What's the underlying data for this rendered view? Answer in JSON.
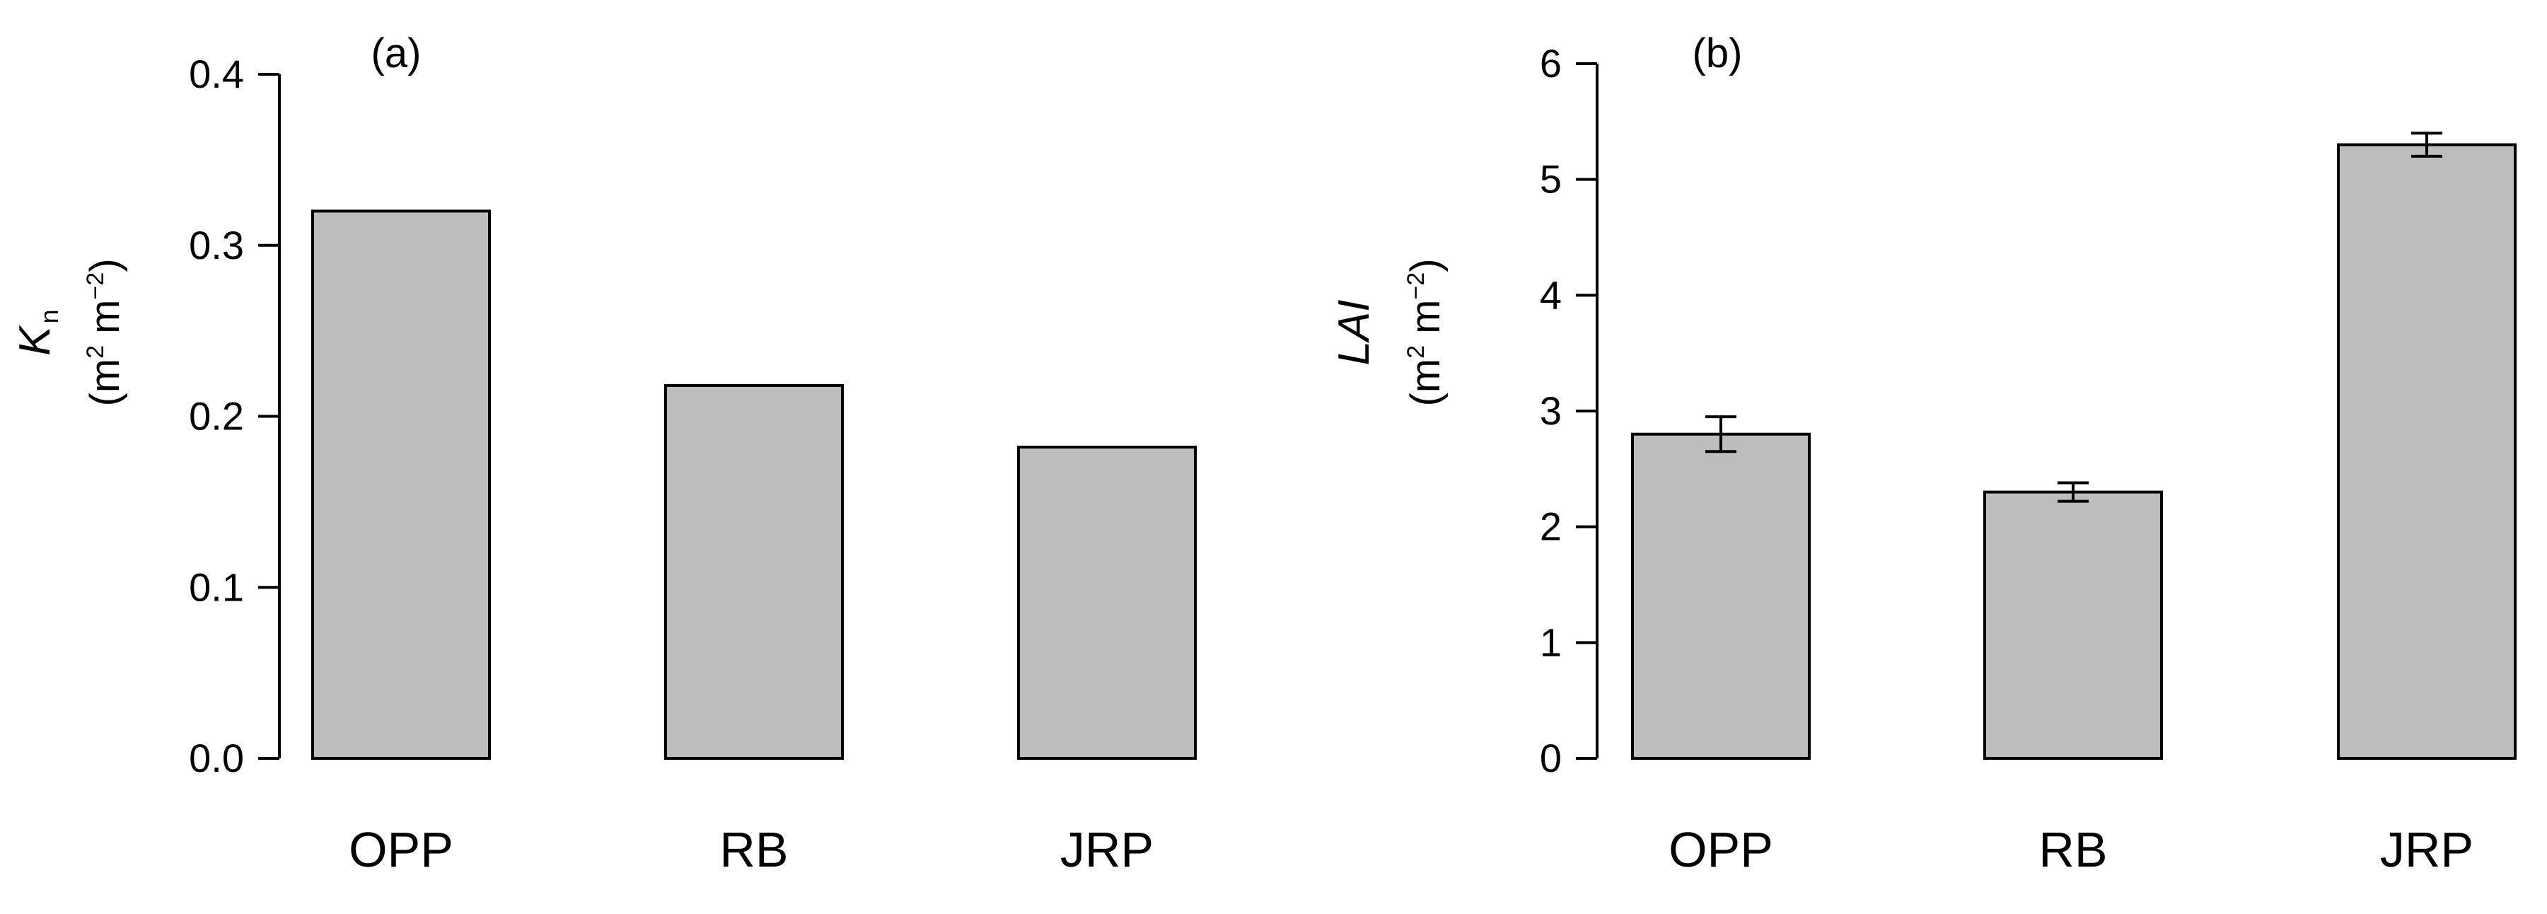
{
  "colors": {
    "bar_fill": "#bdbdbd",
    "bar_stroke": "#000000",
    "axis": "#000000"
  },
  "chart_data": [
    {
      "type": "bar",
      "panel_label": "(a)",
      "categories": [
        "OPP",
        "RB",
        "JRP"
      ],
      "values": [
        0.32,
        0.218,
        0.182
      ],
      "error": null,
      "ylabel": {
        "symbol": "K",
        "subscript": "n",
        "unit_open": "(m",
        "unit_sup1": "2",
        "unit_mid": " m",
        "unit_sup2": "−2",
        "unit_close": ")"
      },
      "ylim": [
        0,
        0.4
      ],
      "yticks": [
        0.0,
        0.1,
        0.2,
        0.3,
        0.4
      ],
      "ytick_labels": [
        "0.0",
        "0.1",
        "0.2",
        "0.3",
        "0.4"
      ],
      "grid": false,
      "legend": "none"
    },
    {
      "type": "bar",
      "panel_label": "(b)",
      "categories": [
        "OPP",
        "RB",
        "JRP"
      ],
      "values": [
        2.8,
        2.3,
        5.3
      ],
      "error": [
        0.15,
        0.08,
        0.1
      ],
      "ylabel": {
        "symbol": "LAI",
        "subscript": "",
        "unit_open": "(m",
        "unit_sup1": "2",
        "unit_mid": " m",
        "unit_sup2": "−2",
        "unit_close": ")"
      },
      "ylim": [
        0,
        6
      ],
      "yticks": [
        0,
        1,
        2,
        3,
        4,
        5,
        6
      ],
      "ytick_labels": [
        "0",
        "1",
        "2",
        "3",
        "4",
        "5",
        "6"
      ],
      "grid": false,
      "legend": "none"
    }
  ]
}
